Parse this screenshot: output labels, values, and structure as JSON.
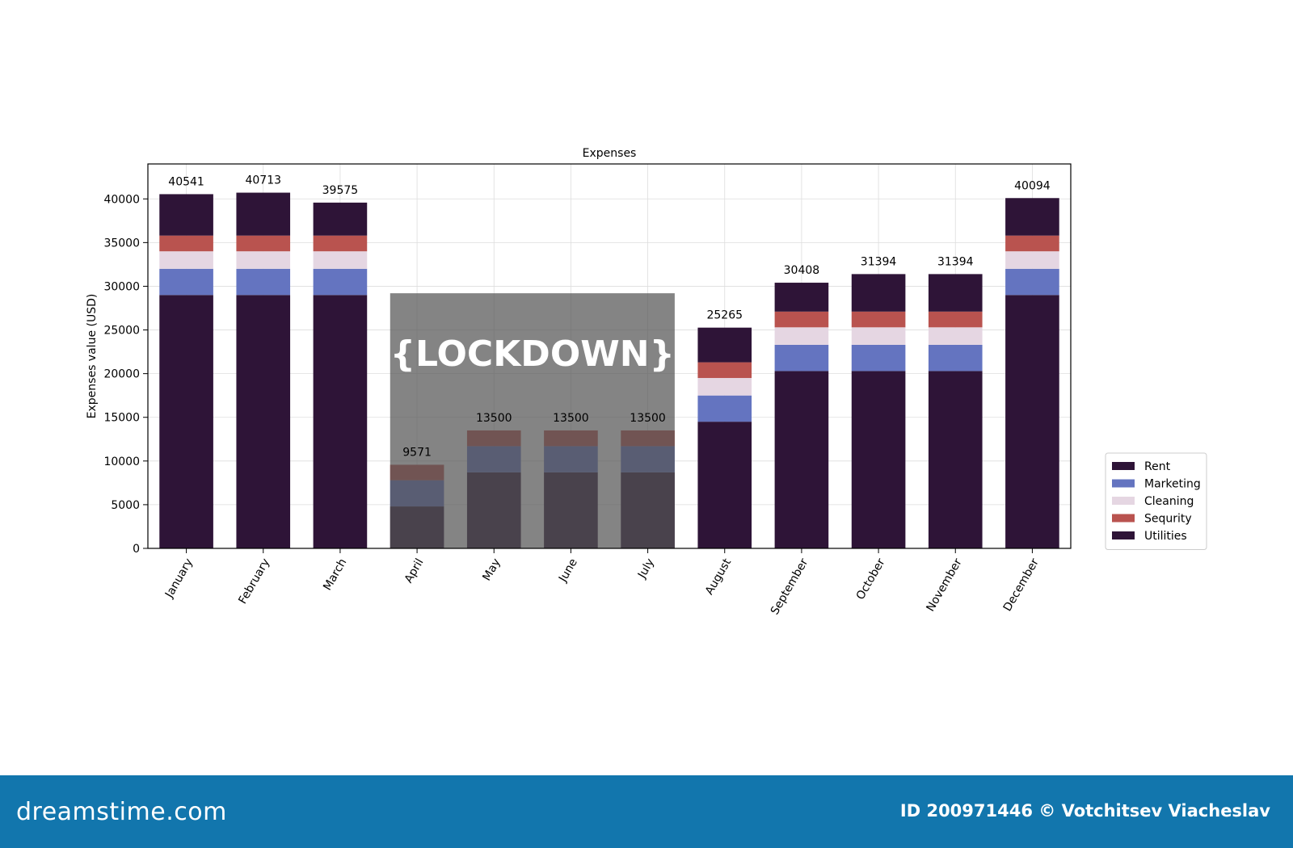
{
  "chart_data": {
    "type": "bar",
    "stacked": true,
    "title": "Expenses",
    "xlabel": "",
    "ylabel": "Expenses value (USD)",
    "ylim": [
      0,
      44000
    ],
    "yticks": [
      0,
      5000,
      10000,
      15000,
      20000,
      25000,
      30000,
      35000,
      40000
    ],
    "grid": true,
    "legend_position": "right",
    "categories": [
      "January",
      "February",
      "March",
      "April",
      "May",
      "June",
      "July",
      "August",
      "September",
      "October",
      "November",
      "December"
    ],
    "totals": [
      40541,
      40713,
      39575,
      9571,
      13500,
      13500,
      13500,
      25265,
      30408,
      31394,
      31394,
      40094
    ],
    "series": [
      {
        "name": "Utilities",
        "color": "#2e1437",
        "values": [
          29000,
          29000,
          29000,
          4800,
          8700,
          8700,
          8700,
          14500,
          20300,
          20300,
          20300,
          29000
        ]
      },
      {
        "name": "Marketing",
        "color": "#6474c0",
        "values": [
          3000,
          3000,
          3000,
          3000,
          3000,
          3000,
          3000,
          3000,
          3000,
          3000,
          3000,
          3000
        ]
      },
      {
        "name": "Cleaning",
        "color": "#e5d6e2",
        "values": [
          2000,
          2000,
          2000,
          0,
          0,
          0,
          0,
          2000,
          2000,
          2000,
          2000,
          2000
        ]
      },
      {
        "name": "Sequrity",
        "color": "#b9534f",
        "values": [
          1800,
          1800,
          1800,
          1771,
          1800,
          1800,
          1800,
          1800,
          1800,
          1800,
          1800,
          1800
        ]
      },
      {
        "name": "Rent",
        "color": "#2e1437",
        "values": [
          4741,
          4913,
          3775,
          0,
          0,
          0,
          0,
          3965,
          3308,
          4294,
          4294,
          4294
        ]
      }
    ],
    "legend": [
      "Rent",
      "Marketing",
      "Cleaning",
      "Sequrity",
      "Utilities"
    ],
    "annotation": {
      "text": "{LOCKDOWN}",
      "from": "April",
      "to": "July",
      "y_top": 29200
    }
  },
  "footer": {
    "logo": "dreamstime.com",
    "credit": "ID 200971446 © Votchitsev Viacheslav"
  }
}
